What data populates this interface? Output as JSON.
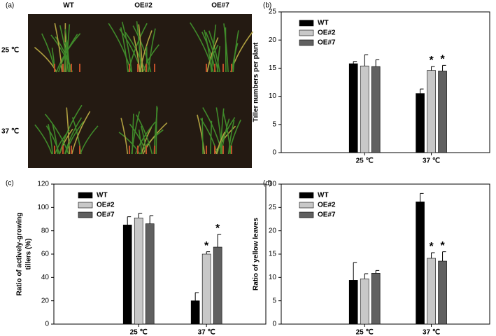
{
  "chart_data": [
    {
      "type": "photo",
      "label": "(a)",
      "columns": [
        "WT",
        "OE#2",
        "OE#7"
      ],
      "rows": [
        "25 ℃",
        "37 ℃"
      ]
    },
    {
      "type": "bar",
      "label": "(b)",
      "ylabel": [
        "Tiller numbers per plant"
      ],
      "categories": [
        "25 ℃",
        "37 ℃"
      ],
      "series": [
        {
          "name": "WT",
          "color": "#000000",
          "values": [
            15.8,
            10.5
          ],
          "errors": [
            0.4,
            0.8
          ],
          "markers": [
            null,
            null
          ]
        },
        {
          "name": "OE#2",
          "color": "#c8c8c8",
          "values": [
            15.4,
            14.6
          ],
          "errors": [
            2.0,
            0.7
          ],
          "markers": [
            null,
            "*"
          ]
        },
        {
          "name": "OE#7",
          "color": "#606060",
          "values": [
            15.3,
            14.5
          ],
          "errors": [
            1.2,
            1.0
          ],
          "markers": [
            null,
            "*"
          ]
        }
      ],
      "ylim": [
        0,
        25
      ],
      "yticks": [
        0,
        5,
        10,
        15,
        20,
        25
      ]
    },
    {
      "type": "bar",
      "label": "(c)",
      "ylabel": [
        "Ratio of  actively-growing",
        "tillers (%)"
      ],
      "categories": [
        "25 ℃",
        "37 ℃"
      ],
      "series": [
        {
          "name": "WT",
          "color": "#000000",
          "values": [
            85,
            20
          ],
          "errors": [
            7,
            7
          ],
          "markers": [
            null,
            null
          ]
        },
        {
          "name": "OE#2",
          "color": "#c8c8c8",
          "values": [
            91,
            60
          ],
          "errors": [
            4,
            2
          ],
          "markers": [
            null,
            "*"
          ]
        },
        {
          "name": "OE#7",
          "color": "#606060",
          "values": [
            86,
            66
          ],
          "errors": [
            7,
            11
          ],
          "markers": [
            null,
            "*"
          ]
        }
      ],
      "ylim": [
        0,
        120
      ],
      "yticks": [
        0,
        20,
        40,
        60,
        80,
        100,
        120
      ]
    },
    {
      "type": "bar",
      "label": "(d)",
      "ylabel": [
        "Ratio of yellow leaves"
      ],
      "categories": [
        "25 ℃",
        "37 ℃"
      ],
      "series": [
        {
          "name": "WT",
          "color": "#000000",
          "values": [
            9.4,
            26.2
          ],
          "errors": [
            3.8,
            1.8
          ],
          "markers": [
            null,
            null
          ]
        },
        {
          "name": "OE#2",
          "color": "#c8c8c8",
          "values": [
            9.7,
            14.1
          ],
          "errors": [
            1.1,
            1.2
          ],
          "markers": [
            null,
            "*"
          ]
        },
        {
          "name": "OE#7",
          "color": "#606060",
          "values": [
            10.9,
            13.5
          ],
          "errors": [
            0.6,
            2.0
          ],
          "markers": [
            null,
            "*"
          ]
        }
      ],
      "ylim": [
        0,
        30
      ],
      "yticks": [
        0,
        5,
        10,
        15,
        20,
        25,
        30
      ]
    }
  ]
}
